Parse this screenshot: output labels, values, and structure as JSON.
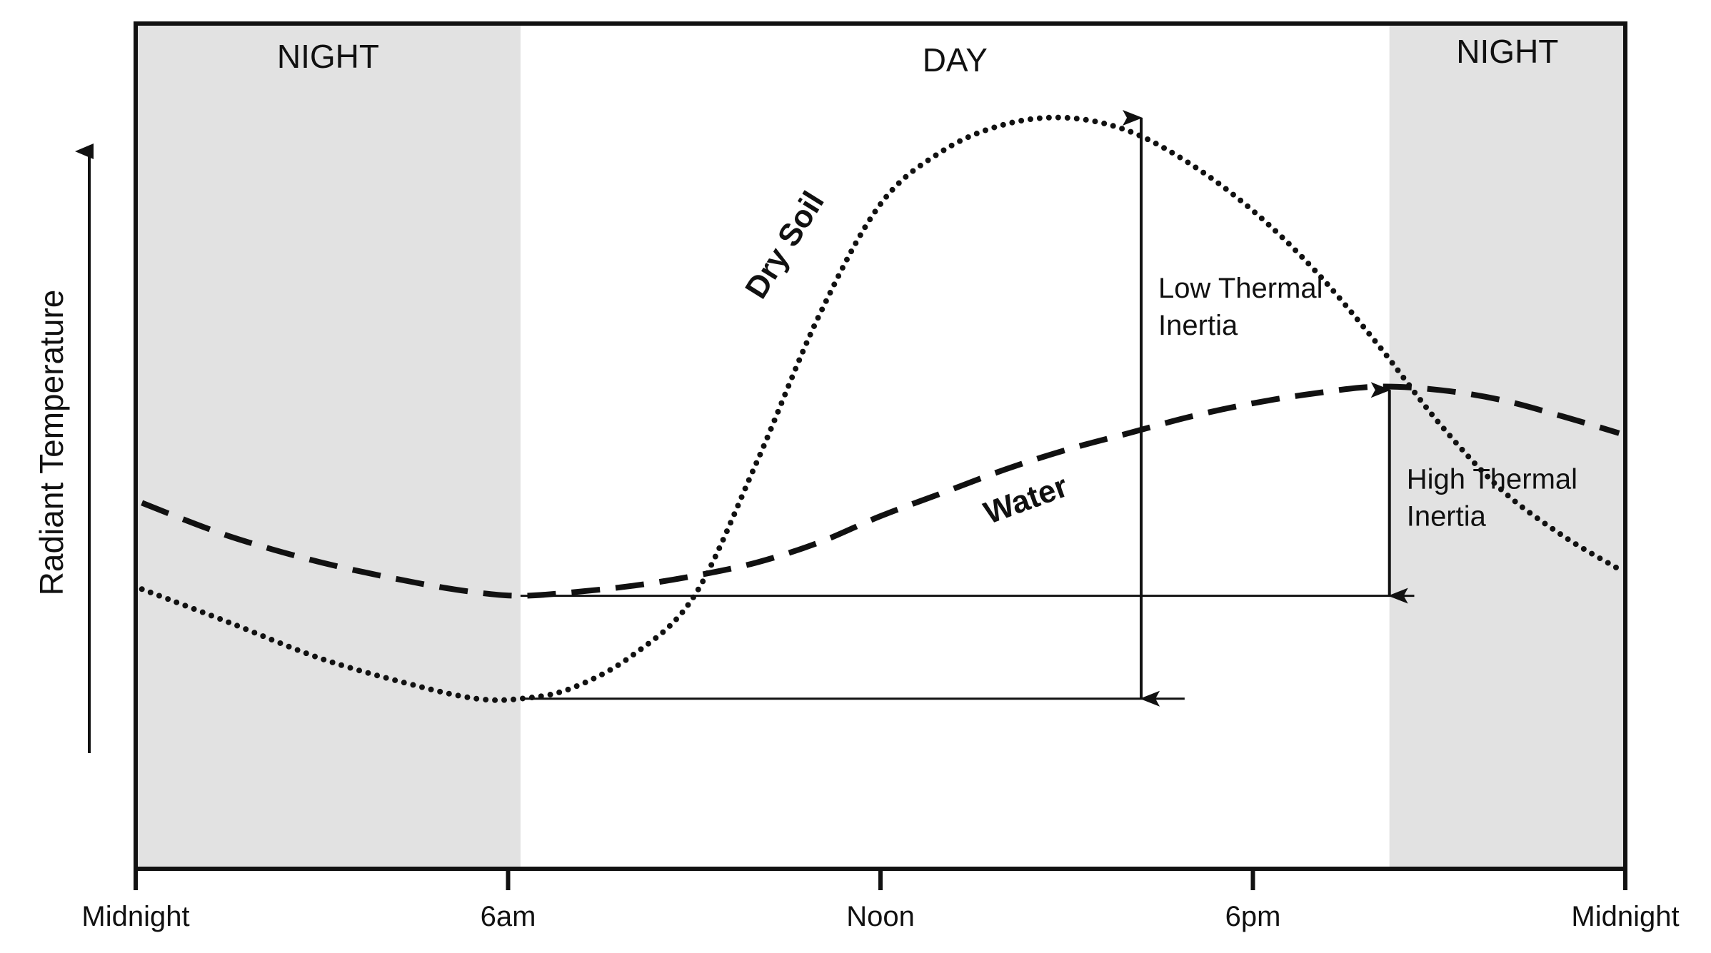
{
  "chart_data": {
    "type": "line",
    "title": "",
    "xlabel": "",
    "ylabel": "Radiant Temperature",
    "x_ticks": [
      "Midnight",
      "6am",
      "Noon",
      "6pm",
      "Midnight"
    ],
    "x_hours": [
      0,
      6,
      12,
      18,
      24
    ],
    "xlim": [
      0,
      24
    ],
    "ylim": [
      0,
      100
    ],
    "periods": [
      {
        "label": "NIGHT",
        "start": 0,
        "end": 6.2,
        "shaded": true
      },
      {
        "label": "DAY",
        "start": 6.2,
        "end": 20.2,
        "shaded": false
      },
      {
        "label": "NIGHT",
        "start": 20.2,
        "end": 24,
        "shaded": true
      }
    ],
    "series": [
      {
        "name": "Dry Soil",
        "style": "dotted",
        "hours": [
          0.1,
          1.5,
          3,
          4.5,
          5.5,
          6.2,
          7,
          8,
          9,
          10,
          11,
          12,
          13,
          14,
          15,
          16,
          17,
          18,
          19,
          20,
          21,
          22,
          23,
          23.9
        ],
        "values": [
          29,
          24,
          18.5,
          14.5,
          12.5,
          12.5,
          14,
          19,
          28,
          48,
          70,
          87,
          95,
          99,
          100,
          98,
          93,
          86,
          77,
          66,
          54,
          44,
          37,
          32
        ]
      },
      {
        "name": "Water",
        "style": "dashed",
        "hours": [
          0.1,
          1.5,
          3,
          4.5,
          5.5,
          6.2,
          7,
          8,
          9,
          10,
          11,
          12,
          13,
          14,
          15,
          16,
          17,
          18,
          19,
          20,
          21,
          22,
          23,
          23.9
        ],
        "values": [
          42,
          37,
          33,
          30,
          28.5,
          28,
          28.5,
          29.5,
          31,
          33,
          36,
          40,
          43.5,
          47,
          50,
          52.5,
          55,
          57,
          58.5,
          59.5,
          59,
          57.5,
          55,
          52.5
        ]
      }
    ],
    "annotations": [
      {
        "label_lines": [
          "Low Thermal",
          "Inertia"
        ],
        "hour": 16.2,
        "from": 12.5,
        "to": 100
      },
      {
        "label_lines": [
          "High Thermal",
          "Inertia"
        ],
        "hour": 20.2,
        "from": 28,
        "to": 59
      }
    ],
    "reference_lines": [
      {
        "level": 28,
        "from_hour": 6.2,
        "to_hour": 20.6
      },
      {
        "level": 12.5,
        "from_hour": 6.2,
        "to_hour": 16.9
      }
    ]
  }
}
